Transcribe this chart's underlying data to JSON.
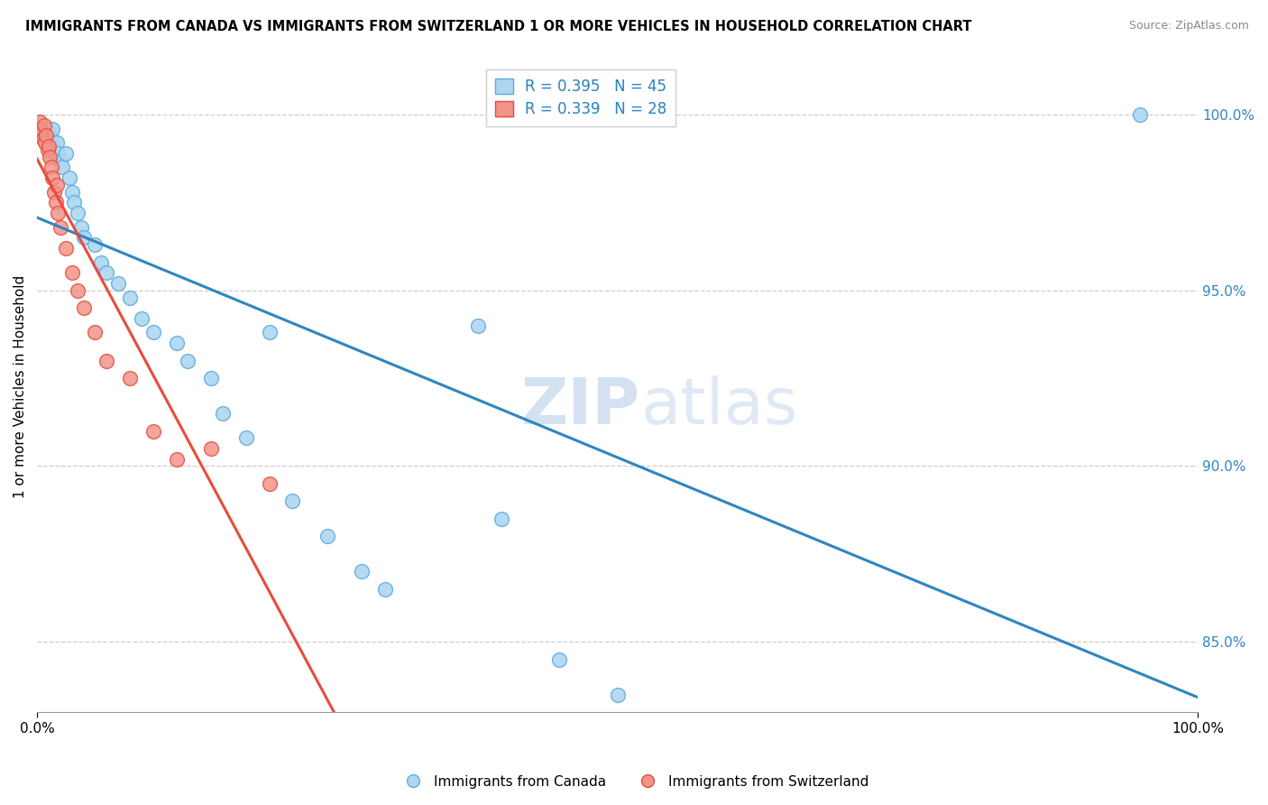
{
  "title": "IMMIGRANTS FROM CANADA VS IMMIGRANTS FROM SWITZERLAND 1 OR MORE VEHICLES IN HOUSEHOLD CORRELATION CHART",
  "source": "Source: ZipAtlas.com",
  "ylabel": "1 or more Vehicles in Household",
  "legend_canada_label": "Immigrants from Canada",
  "legend_switzerland_label": "Immigrants from Switzerland",
  "R_canada": 0.395,
  "N_canada": 45,
  "R_switzerland": 0.339,
  "N_switzerland": 28,
  "canada_color": "#AED6F1",
  "switzerland_color": "#F1948A",
  "canada_edge_color": "#5DADE2",
  "switzerland_edge_color": "#E74C3C",
  "canada_line_color": "#2E86C1",
  "switzerland_line_color": "#E74C3C",
  "watermark_zip": "ZIP",
  "watermark_atlas": "atlas",
  "xlim": [
    0.0,
    1.0
  ],
  "ylim": [
    83.0,
    101.5
  ],
  "ytick_positions": [
    85.0,
    90.0,
    95.0,
    100.0
  ],
  "ytick_labels": [
    "85.0%",
    "90.0%",
    "95.0%",
    "100.0%"
  ],
  "canada_x": [
    0.005,
    0.007,
    0.008,
    0.009,
    0.01,
    0.01,
    0.011,
    0.012,
    0.013,
    0.014,
    0.015,
    0.016,
    0.017,
    0.018,
    0.02,
    0.022,
    0.025,
    0.028,
    0.03,
    0.032,
    0.035,
    0.038,
    0.04,
    0.05,
    0.055,
    0.06,
    0.07,
    0.08,
    0.09,
    0.1,
    0.12,
    0.13,
    0.15,
    0.16,
    0.18,
    0.2,
    0.22,
    0.25,
    0.28,
    0.3,
    0.38,
    0.4,
    0.45,
    0.5,
    0.95
  ],
  "canada_y": [
    99.5,
    99.3,
    99.6,
    99.4,
    99.2,
    99.5,
    99.4,
    99.3,
    99.6,
    99.1,
    99.0,
    98.8,
    99.2,
    98.9,
    98.7,
    98.5,
    98.9,
    98.2,
    97.8,
    97.5,
    97.2,
    96.8,
    96.5,
    96.3,
    95.8,
    95.5,
    95.2,
    94.8,
    94.2,
    93.8,
    93.5,
    93.0,
    92.5,
    91.5,
    90.8,
    93.8,
    89.0,
    88.0,
    87.0,
    86.5,
    94.0,
    88.5,
    84.5,
    83.5,
    100.0
  ],
  "switzerland_x": [
    0.002,
    0.003,
    0.004,
    0.005,
    0.006,
    0.007,
    0.008,
    0.009,
    0.01,
    0.011,
    0.012,
    0.013,
    0.015,
    0.016,
    0.017,
    0.018,
    0.02,
    0.025,
    0.03,
    0.035,
    0.04,
    0.05,
    0.06,
    0.08,
    0.1,
    0.12,
    0.15,
    0.2
  ],
  "switzerland_y": [
    99.8,
    99.6,
    99.5,
    99.3,
    99.7,
    99.2,
    99.4,
    99.0,
    99.1,
    98.8,
    98.5,
    98.2,
    97.8,
    97.5,
    98.0,
    97.2,
    96.8,
    96.2,
    95.5,
    95.0,
    94.5,
    93.8,
    93.0,
    92.5,
    91.0,
    90.2,
    90.5,
    89.5
  ],
  "canada_line_x_start": 0.0,
  "canada_line_x_end": 1.0,
  "switzerland_line_x_start": 0.0,
  "switzerland_line_x_end": 0.28
}
